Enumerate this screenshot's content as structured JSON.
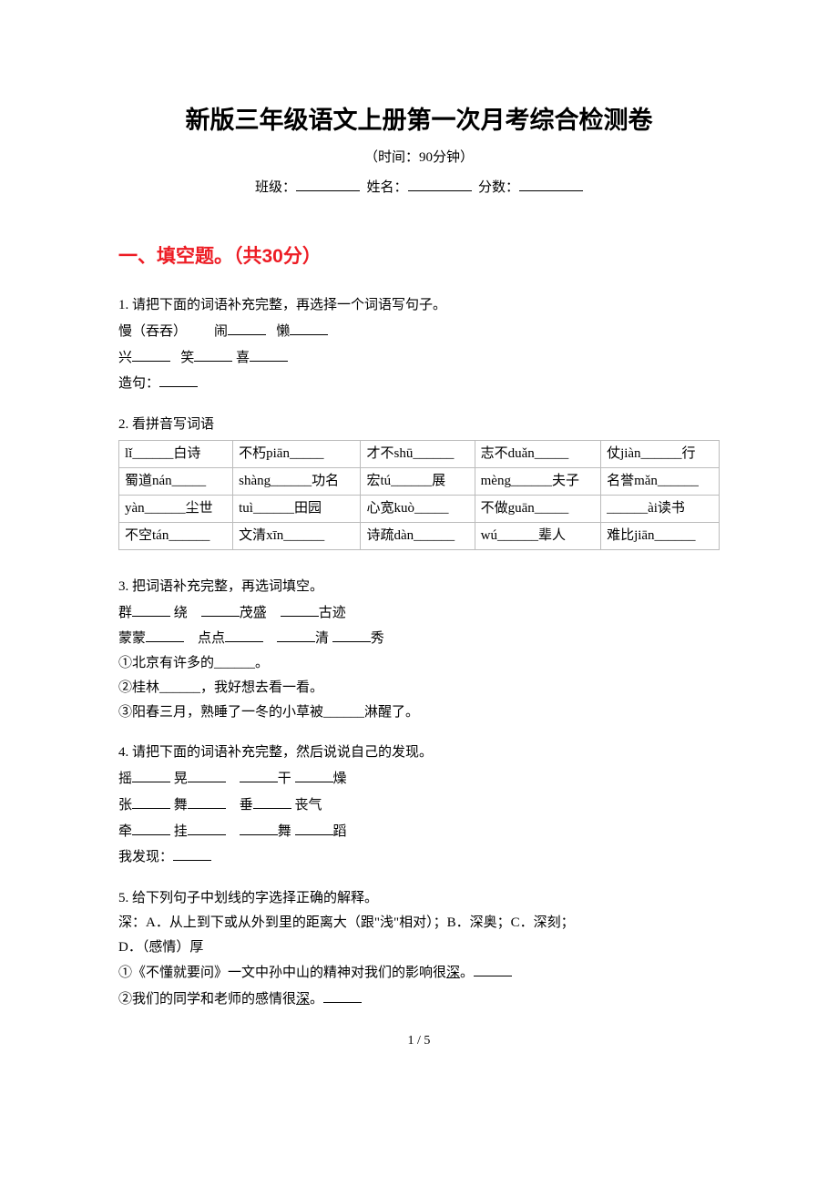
{
  "title": "新版三年级语文上册第一次月考综合检测卷",
  "time_label": "（时间：90分钟）",
  "header": {
    "class_label": "班级：",
    "name_label": "姓名：",
    "score_label": "分数："
  },
  "section1": {
    "header": "一、填空题。（共30分）",
    "header_color": "#ed1c24",
    "q1": {
      "label": "1. 请把下面的词语补充完整，再选择一个词语写句子。",
      "line1_a": "慢（吞吞）",
      "line1_b": "闹",
      "line1_c": "懒",
      "line2_a": "兴",
      "line2_b": "笑",
      "line2_c": "喜",
      "line3": "造句："
    },
    "q2": {
      "label": "2. 看拼音写词语",
      "table": {
        "rows": [
          [
            "lǐ______白诗",
            "不朽piān_____",
            "才不shū______",
            "志不duǎn_____",
            "仗jiàn______行"
          ],
          [
            "蜀道nán_____",
            "shàng______功名",
            "宏tú______展",
            "mèng______夫子",
            "名誉mǎn______"
          ],
          [
            "yàn______尘世",
            "tuì______田园",
            "心宽kuò_____",
            "不做guān_____",
            "______ài读书"
          ],
          [
            "不空tán______",
            "文清xīn______",
            "诗疏dàn______",
            "wú______辈人",
            "难比jiān______"
          ]
        ]
      }
    },
    "q3": {
      "label": "3. 把词语补充完整，再选词填空。",
      "line1_a": "群",
      "line1_b": "绕",
      "line1_c": "茂盛",
      "line1_d": "古迹",
      "line2_a": "蒙蒙",
      "line2_b": "点点",
      "line2_c": "清",
      "line2_d": "秀",
      "line3": "①北京有许多的______。",
      "line4": "②桂林______，我好想去看一看。",
      "line5": "③阳春三月，熟睡了一冬的小草被______淋醒了。"
    },
    "q4": {
      "label": "4. 请把下面的词语补充完整，然后说说自己的发现。",
      "line1_a": "摇",
      "line1_b": "晃",
      "line1_c": "干",
      "line1_d": "燥",
      "line2_a": "张",
      "line2_b": "舞",
      "line2_c": "垂",
      "line2_d": "丧气",
      "line3_a": "牵",
      "line3_b": "挂",
      "line3_c": "舞",
      "line3_d": "蹈",
      "line4": "我发现："
    },
    "q5": {
      "label": "5. 给下列句子中划线的字选择正确的解释。",
      "line1": "深：A．从上到下或从外到里的距离大（跟\"浅\"相对）；B．深奥；C．深刻；",
      "line2": "D．（感情）厚",
      "line3_a": "①《不懂就要问》一文中孙中山的精神对我们的影响很",
      "line3_b": "深",
      "line3_c": "。",
      "line4_a": "②我们的同学和老师的感情很",
      "line4_b": "深",
      "line4_c": "。"
    }
  },
  "page_num": "1 / 5"
}
